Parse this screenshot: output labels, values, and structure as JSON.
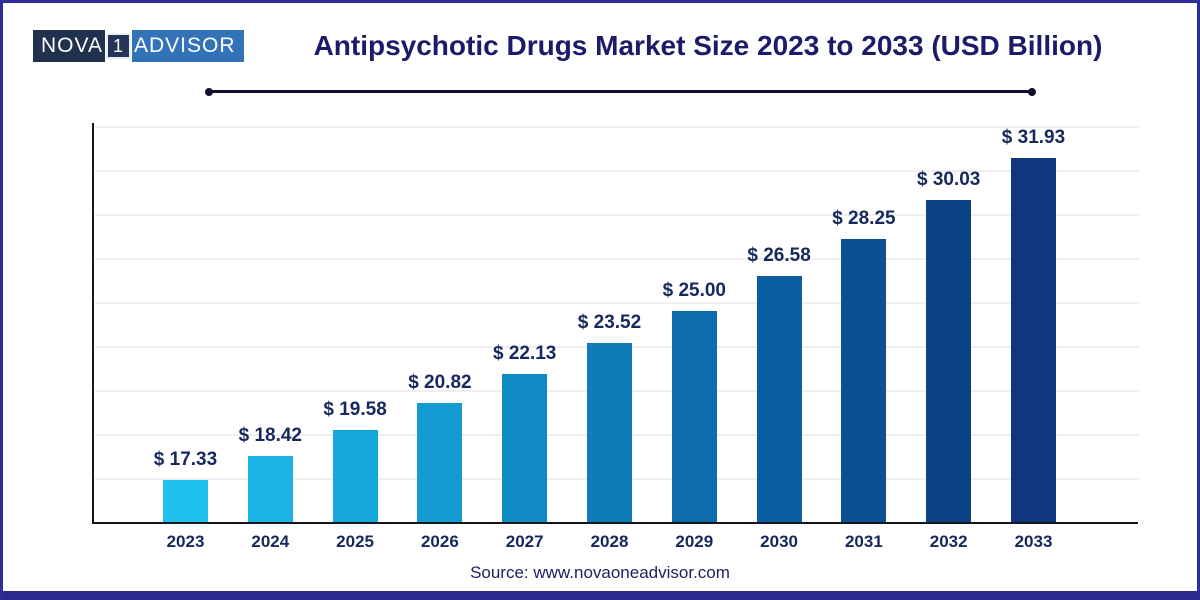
{
  "logo": {
    "part1": "NOVA",
    "part2": "1",
    "part3": "ADVISOR"
  },
  "header": {
    "title": "Antipsychotic Drugs Market Size 2023 to 2033 (USD Billion)"
  },
  "footer": {
    "source": "Source: www.novaoneadvisor.com"
  },
  "colors": {
    "frame_border": "#2e2e9a",
    "bottom_bar": "#2b2b8d",
    "title_text": "#1b1b6a",
    "label_text": "#16295e",
    "axis": "#15151d",
    "gridline": "#efefef",
    "logo_left_bg": "#20304f",
    "logo_right_bg": "#3273b8"
  },
  "chart_data": {
    "type": "bar",
    "title": "Antipsychotic Drugs Market Size 2023 to 2033 (USD Billion)",
    "xlabel": "",
    "ylabel": "",
    "categories": [
      "2023",
      "2024",
      "2025",
      "2026",
      "2027",
      "2028",
      "2029",
      "2030",
      "2031",
      "2032",
      "2033"
    ],
    "values": [
      17.33,
      18.42,
      19.58,
      20.82,
      22.13,
      23.52,
      25.0,
      26.58,
      28.25,
      30.03,
      31.93
    ],
    "value_labels": [
      "$ 17.33",
      "$ 18.42",
      "$ 19.58",
      "$ 20.82",
      "$ 22.13",
      "$ 23.52",
      "$ 25.00",
      "$ 26.58",
      "$ 28.25",
      "$ 30.03",
      "$ 31.93"
    ],
    "bar_colors": [
      "#20c0ef",
      "#1ab4e5",
      "#15a8da",
      "#139ad0",
      "#118bc4",
      "#0f7cb8",
      "#0d6dac",
      "#0b5fa1",
      "#0b5093",
      "#0c4387",
      "#0f377d"
    ],
    "unit": "USD Billion",
    "ylim": [
      15.4,
      33.5
    ],
    "grid": true,
    "legend": false
  }
}
